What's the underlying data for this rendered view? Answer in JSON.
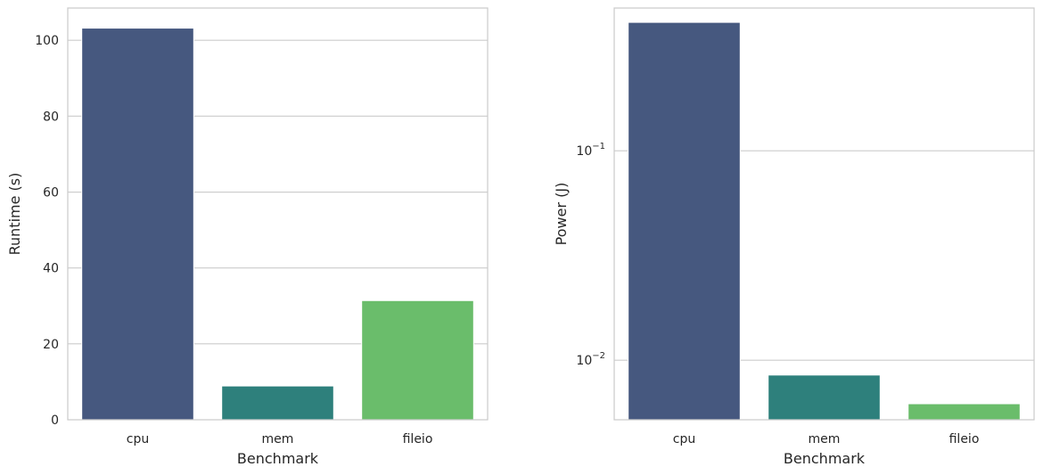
{
  "chart_data": [
    {
      "type": "bar",
      "categories": [
        "cpu",
        "mem",
        "fileio"
      ],
      "values": [
        103.2,
        8.9,
        31.4
      ],
      "colors": [
        "#46587f",
        "#2e807c",
        "#6abd6b"
      ],
      "xlabel": "Benchmark",
      "ylabel": "Runtime (s)",
      "ylim": [
        0,
        108.5
      ],
      "yscale": "linear",
      "yticks": [
        0,
        20,
        40,
        60,
        80,
        100
      ],
      "ytick_labels": [
        "0",
        "20",
        "40",
        "60",
        "80",
        "100"
      ],
      "grid": "horizontal"
    },
    {
      "type": "bar",
      "categories": [
        "cpu",
        "mem",
        "fileio"
      ],
      "values": [
        0.41,
        0.0085,
        0.0062
      ],
      "colors": [
        "#46587f",
        "#2e807c",
        "#6abd6b"
      ],
      "xlabel": "Benchmark",
      "ylabel": "Power (J)",
      "ylim": [
        0.0052,
        0.48
      ],
      "yscale": "log",
      "yticks": [
        0.01,
        0.1
      ],
      "ytick_labels": [
        {
          "base": "10",
          "exp": "−2"
        },
        {
          "base": "10",
          "exp": "−1"
        }
      ],
      "grid": "horizontal"
    }
  ]
}
